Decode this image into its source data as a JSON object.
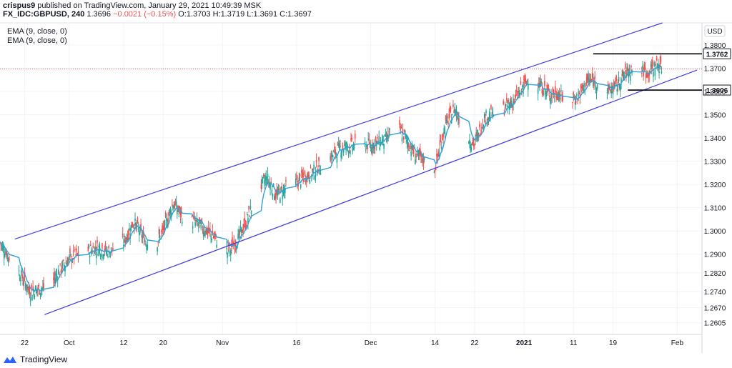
{
  "header": {
    "user": "crispus9",
    "published": " published on TradingView.com, January 29, 2021 10:49:39 MSK",
    "symbol": "FX_IDC:GBPUSD, 240",
    "last": "1.3696",
    "change": "−0.0021 (−0.15%)",
    "o": "O:1.3703",
    "h": "H:1.3719",
    "l": "L:1.3691",
    "c": "C:1.3697"
  },
  "indicators": [
    "EMA (9, close, 0)",
    "EMA (9, close, 0)"
  ],
  "footer": {
    "brand": "TradingView"
  },
  "colors": {
    "up": "#26a69a",
    "down": "#ef5350",
    "ema": "#2f9fd8",
    "channel": "#3f3fe0",
    "current_price_line": "#ef5350"
  },
  "chart_data": {
    "type": "candlestick",
    "title": "",
    "currency": "USD",
    "ylim": [
      1.2555,
      1.3895
    ],
    "y_ticks": [
      "1.3800",
      "1.3700",
      "1.3600",
      "1.3500",
      "1.3400",
      "1.3300",
      "1.3200",
      "1.3100",
      "1.3000",
      "1.2900",
      "1.2820",
      "1.2740",
      "1.2670",
      "1.2605"
    ],
    "y_tick_values": [
      1.38,
      1.37,
      1.36,
      1.35,
      1.34,
      1.33,
      1.32,
      1.31,
      1.3,
      1.29,
      1.282,
      1.274,
      1.267,
      1.2605
    ],
    "x_axis": {
      "start": "2020-09-17",
      "end": "2021-02-06",
      "ticks": [
        {
          "date": "2020-09-22",
          "label": "22",
          "bold": false
        },
        {
          "date": "2020-10-01",
          "label": "Oct",
          "bold": false
        },
        {
          "date": "2020-10-12",
          "label": "12",
          "bold": false
        },
        {
          "date": "2020-10-20",
          "label": "20",
          "bold": false
        },
        {
          "date": "2020-11-01",
          "label": "Nov",
          "bold": false
        },
        {
          "date": "2020-11-16",
          "label": "16",
          "bold": false
        },
        {
          "date": "2020-12-01",
          "label": "Dec",
          "bold": false
        },
        {
          "date": "2020-12-14",
          "label": "14",
          "bold": false
        },
        {
          "date": "2020-12-22",
          "label": "22",
          "bold": false
        },
        {
          "date": "2021-01-01",
          "label": "2021",
          "bold": true
        },
        {
          "date": "2021-01-11",
          "label": "11",
          "bold": false
        },
        {
          "date": "2021-01-19",
          "label": "19",
          "bold": false
        },
        {
          "date": "2021-02-01",
          "label": "Feb",
          "bold": false
        }
      ]
    },
    "current_price": 1.3697,
    "price_labels": [
      {
        "value": 1.3762,
        "label": "1.3762",
        "line_start": "2021-01-15",
        "line_end": "2021-02-05"
      },
      {
        "value": 1.3606,
        "label": "1.3606",
        "line_start": "2021-01-22",
        "line_end": "2021-02-05"
      }
    ],
    "channel": {
      "upper": [
        {
          "date": "2020-09-20",
          "value": 1.2965
        },
        {
          "date": "2021-01-29",
          "value": 1.3895
        }
      ],
      "lower": [
        {
          "date": "2020-09-26",
          "value": 1.264
        },
        {
          "date": "2021-02-05",
          "value": 1.3692
        }
      ]
    },
    "close_series": [
      {
        "date": "2020-09-17",
        "value": 1.295
      },
      {
        "date": "2020-09-19",
        "value": 1.288
      },
      {
        "date": "2020-09-21",
        "value": 1.282
      },
      {
        "date": "2020-09-23",
        "value": 1.274
      },
      {
        "date": "2020-09-25",
        "value": 1.275
      },
      {
        "date": "2020-09-27",
        "value": 1.276
      },
      {
        "date": "2020-09-29",
        "value": 1.283
      },
      {
        "date": "2020-10-01",
        "value": 1.288
      },
      {
        "date": "2020-10-04",
        "value": 1.291
      },
      {
        "date": "2020-10-07",
        "value": 1.293
      },
      {
        "date": "2020-10-09",
        "value": 1.291
      },
      {
        "date": "2020-10-12",
        "value": 1.295
      },
      {
        "date": "2020-10-14",
        "value": 1.304
      },
      {
        "date": "2020-10-16",
        "value": 1.297
      },
      {
        "date": "2020-10-18",
        "value": 1.292
      },
      {
        "date": "2020-10-20",
        "value": 1.3
      },
      {
        "date": "2020-10-22",
        "value": 1.312
      },
      {
        "date": "2020-10-24",
        "value": 1.306
      },
      {
        "date": "2020-10-27",
        "value": 1.303
      },
      {
        "date": "2020-10-30",
        "value": 1.298
      },
      {
        "date": "2020-11-02",
        "value": 1.291
      },
      {
        "date": "2020-11-04",
        "value": 1.296
      },
      {
        "date": "2020-11-06",
        "value": 1.305
      },
      {
        "date": "2020-11-08",
        "value": 1.317
      },
      {
        "date": "2020-11-10",
        "value": 1.323
      },
      {
        "date": "2020-11-12",
        "value": 1.315
      },
      {
        "date": "2020-11-14",
        "value": 1.319
      },
      {
        "date": "2020-11-16",
        "value": 1.321
      },
      {
        "date": "2020-11-19",
        "value": 1.325
      },
      {
        "date": "2020-11-22",
        "value": 1.33
      },
      {
        "date": "2020-11-25",
        "value": 1.336
      },
      {
        "date": "2020-11-28",
        "value": 1.337
      },
      {
        "date": "2020-12-01",
        "value": 1.337
      },
      {
        "date": "2020-12-04",
        "value": 1.339
      },
      {
        "date": "2020-12-06",
        "value": 1.346
      },
      {
        "date": "2020-12-08",
        "value": 1.34
      },
      {
        "date": "2020-12-10",
        "value": 1.333
      },
      {
        "date": "2020-12-12",
        "value": 1.33
      },
      {
        "date": "2020-12-14",
        "value": 1.327
      },
      {
        "date": "2020-12-16",
        "value": 1.345
      },
      {
        "date": "2020-12-18",
        "value": 1.353
      },
      {
        "date": "2020-12-20",
        "value": 1.342
      },
      {
        "date": "2020-12-22",
        "value": 1.337
      },
      {
        "date": "2020-12-24",
        "value": 1.349
      },
      {
        "date": "2020-12-27",
        "value": 1.351
      },
      {
        "date": "2020-12-30",
        "value": 1.356
      },
      {
        "date": "2021-01-02",
        "value": 1.366
      },
      {
        "date": "2021-01-04",
        "value": 1.363
      },
      {
        "date": "2021-01-06",
        "value": 1.359
      },
      {
        "date": "2021-01-08",
        "value": 1.359
      },
      {
        "date": "2021-01-10",
        "value": 1.355
      },
      {
        "date": "2021-01-12",
        "value": 1.358
      },
      {
        "date": "2021-01-14",
        "value": 1.365
      },
      {
        "date": "2021-01-16",
        "value": 1.364
      },
      {
        "date": "2021-01-18",
        "value": 1.36
      },
      {
        "date": "2021-01-20",
        "value": 1.363
      },
      {
        "date": "2021-01-22",
        "value": 1.369
      },
      {
        "date": "2021-01-24",
        "value": 1.37
      },
      {
        "date": "2021-01-26",
        "value": 1.368
      },
      {
        "date": "2021-01-28",
        "value": 1.372
      },
      {
        "date": "2021-01-29",
        "value": 1.3697
      }
    ]
  }
}
